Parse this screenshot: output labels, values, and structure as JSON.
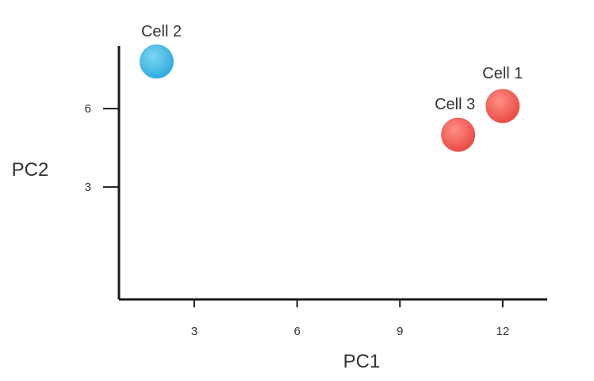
{
  "chart_data": {
    "type": "scatter",
    "title": "",
    "xlabel": "PC1",
    "ylabel": "PC2",
    "xlim": [
      0.8,
      13.3
    ],
    "ylim": [
      -1.3,
      8.4
    ],
    "xticks": [
      3,
      6,
      9,
      12
    ],
    "yticks": [
      3,
      6
    ],
    "points": [
      {
        "label": "Cell 2",
        "x": 1.9,
        "y": 7.8,
        "color": "#3db7e4"
      },
      {
        "label": "Cell 1",
        "x": 12.0,
        "y": 6.1,
        "color": "#f05a5a"
      },
      {
        "label": "Cell 3",
        "x": 10.7,
        "y": 5.0,
        "color": "#f05a5a"
      }
    ],
    "grid": false
  }
}
